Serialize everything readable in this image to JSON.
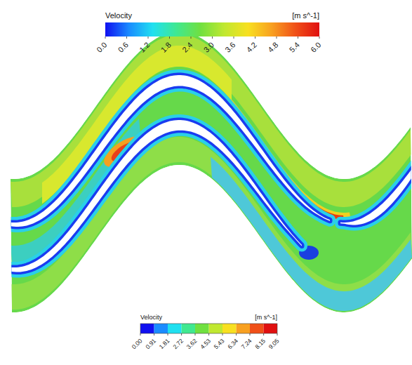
{
  "chart_data": {
    "type": "contour",
    "colorbars": [
      {
        "title": "Velocity",
        "unit": "[m s^-1]",
        "range": [
          0,
          6
        ],
        "ticks": [
          {
            "value": 0,
            "label": "0.0"
          },
          0.6,
          1.2,
          1.8,
          2.4,
          {
            "value": 3,
            "label": "3.0"
          },
          3.6,
          4.2,
          4.8,
          5.4,
          {
            "value": 6,
            "label": "6.0"
          }
        ]
      },
      {
        "title": "Velocity",
        "unit": "[m s^-1]",
        "range": [
          0,
          9.05
        ],
        "ticks": [
          {
            "value": 0,
            "label": "0.00"
          },
          0.91,
          1.81,
          2.72,
          3.62,
          4.53,
          5.43,
          6.34,
          7.24,
          8.15,
          9.05
        ]
      }
    ]
  }
}
